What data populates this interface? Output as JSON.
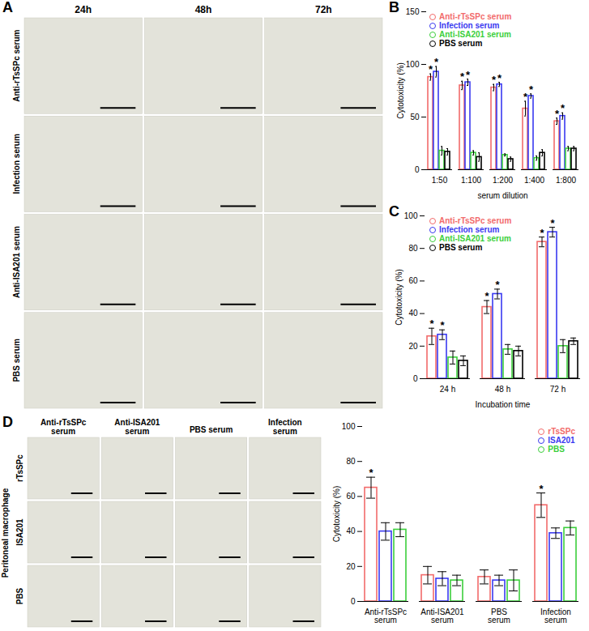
{
  "chart_data": [
    {
      "panel": "B",
      "type": "bar",
      "xlabel": "serum dilution",
      "ylabel": "Cytotoxicity (%)",
      "categories": [
        "1:50",
        "1:100",
        "1:200",
        "1:400",
        "1:800"
      ],
      "series": [
        {
          "name": "Anti-rTsSPc serum",
          "color": "#f26b6b",
          "values": [
            88,
            80,
            78,
            58,
            46
          ],
          "errors": [
            3,
            4,
            3,
            7,
            3
          ],
          "significance": [
            "*",
            "*",
            "*",
            "*",
            "*"
          ]
        },
        {
          "name": "Infection serum",
          "color": "#3a3af0",
          "values": [
            93,
            83,
            81,
            70,
            51
          ],
          "errors": [
            5,
            3,
            2,
            2,
            3
          ],
          "significance": [
            "*",
            "*",
            "*",
            "*",
            "*"
          ]
        },
        {
          "name": "Anti-ISA201 serum",
          "color": "#3ccf3c",
          "values": [
            18,
            16,
            14,
            11,
            20
          ],
          "errors": [
            4,
            2,
            1,
            2,
            2
          ],
          "significance": [
            null,
            null,
            null,
            null,
            null
          ]
        },
        {
          "name": "PBS serum",
          "color": "#000000",
          "values": [
            17,
            12,
            10,
            16,
            20
          ],
          "errors": [
            3,
            4,
            2,
            3,
            2
          ],
          "significance": [
            null,
            null,
            null,
            null,
            null
          ]
        }
      ],
      "ylim": [
        0,
        150
      ],
      "yticks": [
        0,
        50,
        100,
        150
      ],
      "legend": "top-left"
    },
    {
      "panel": "C",
      "type": "bar",
      "xlabel": "Incubation time",
      "ylabel": "Cytotoxicity (%)",
      "categories": [
        "24 h",
        "48 h",
        "72 h"
      ],
      "series": [
        {
          "name": "Anti-rTsSPc serum",
          "color": "#f26b6b",
          "values": [
            26,
            44,
            84
          ],
          "errors": [
            5,
            4,
            3
          ],
          "significance": [
            "*",
            "*",
            "*"
          ]
        },
        {
          "name": "Infection serum",
          "color": "#3a3af0",
          "values": [
            27,
            52,
            90
          ],
          "errors": [
            3,
            3,
            3
          ],
          "significance": [
            "*",
            "*",
            "*"
          ]
        },
        {
          "name": "Anti-ISA201 serum",
          "color": "#3ccf3c",
          "values": [
            13,
            18,
            20
          ],
          "errors": [
            4,
            3,
            4
          ],
          "significance": [
            null,
            null,
            null
          ]
        },
        {
          "name": "PBS serum",
          "color": "#000000",
          "values": [
            11,
            17,
            23
          ],
          "errors": [
            3,
            3,
            2
          ],
          "significance": [
            null,
            null,
            null
          ]
        }
      ],
      "ylim": [
        0,
        100
      ],
      "yticks": [
        0,
        20,
        40,
        60,
        80,
        100
      ],
      "legend": "top-left"
    },
    {
      "type": "bar",
      "ylabel": "Cytotoxicity (%)",
      "categories": [
        "Anti-rTsSPc serum",
        "Anti-ISA201 serum",
        "PBS serum",
        "Infection serum"
      ],
      "series": [
        {
          "name": "rTsSPc",
          "color": "#f26b6b",
          "values": [
            65,
            15,
            14,
            55
          ],
          "errors": [
            6,
            5,
            4,
            7
          ],
          "significance": [
            "*",
            null,
            null,
            "*"
          ]
        },
        {
          "name": "ISA201",
          "color": "#3a3af0",
          "values": [
            40,
            13,
            12,
            39
          ],
          "errors": [
            5,
            4,
            3,
            3
          ],
          "significance": [
            null,
            null,
            null,
            null
          ]
        },
        {
          "name": "PBS",
          "color": "#3ccf3c",
          "values": [
            41,
            12,
            12,
            42
          ],
          "errors": [
            4,
            3,
            6,
            4
          ],
          "significance": [
            null,
            null,
            null,
            null
          ]
        }
      ],
      "ylim": [
        0,
        100
      ],
      "yticks": [
        0,
        20,
        40,
        60,
        80,
        100
      ],
      "legend": "top-right"
    }
  ],
  "image_panels": [
    {
      "panel": "A",
      "column_labels": [
        "24h",
        "48h",
        "72h"
      ],
      "row_labels": [
        "Anti-rTsSPc serum",
        "Infection serum",
        "Anti-ISA201 serum",
        "PBS serum"
      ]
    },
    {
      "panel": "D",
      "group_label": "Peritoneal macrophage",
      "column_labels": [
        "Anti-rTsSPc serum",
        "Anti-ISA201 serum",
        "PBS serum",
        "Infection serum"
      ],
      "row_labels": [
        "rTsSPc",
        "ISA201",
        "PBS"
      ]
    }
  ]
}
